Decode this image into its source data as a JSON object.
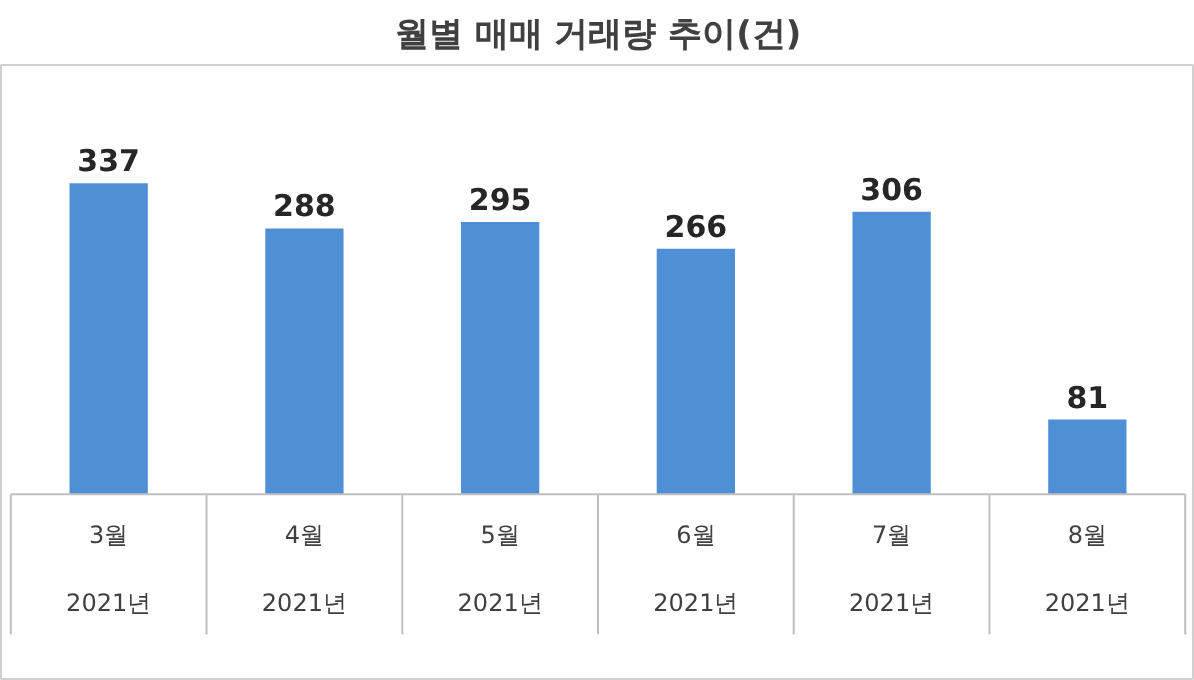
{
  "chart_data": {
    "type": "bar",
    "title": "월별 매매 거래량 추이(건)",
    "categories": [
      "3월\n2021년",
      "4월\n2021년",
      "5월\n2021년",
      "6월\n2021년",
      "7월\n2021년",
      "8월\n2021년"
    ],
    "values": [
      337,
      288,
      295,
      266,
      306,
      81
    ],
    "color": "#4f8fd6",
    "data_labels": true,
    "grid": false
  }
}
